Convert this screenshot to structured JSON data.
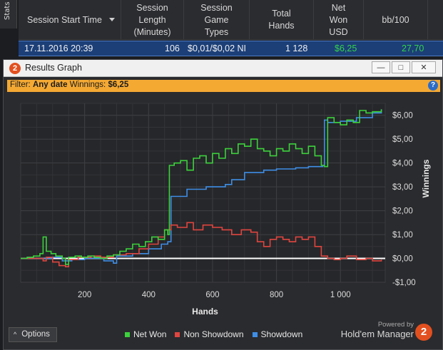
{
  "sidebar": {
    "tab_label": "Stats"
  },
  "table": {
    "columns": [
      {
        "label": "Session Start Time",
        "sortable": true
      },
      {
        "label": "Session\nLength\n(Minutes)"
      },
      {
        "label": "Session\nGame\nTypes"
      },
      {
        "label": "Total\nHands"
      },
      {
        "label": "Net\nWon\nUSD"
      },
      {
        "label": "bb/100"
      }
    ],
    "rows": [
      {
        "start": "17.11.2016 20:39",
        "length": "106",
        "game": "$0,01/$0,02 NI",
        "hands": "1 128",
        "net": "$6,25",
        "bb100": "27,70"
      }
    ]
  },
  "window": {
    "title": "Results Graph",
    "logo_char": "2",
    "minimize_glyph": "—",
    "maximize_glyph": "□",
    "close_glyph": "✕",
    "help_glyph": "?"
  },
  "filter": {
    "prefix": "Filter:",
    "date_value": "Any date",
    "winnings_label": "Winnings:",
    "winnings_value": "$6,25"
  },
  "options_button": {
    "label": "Options",
    "caret": "^"
  },
  "powered": {
    "line1": "Powered by",
    "line2": "Hold'em Manager",
    "logo_char": "2"
  },
  "colors": {
    "net_won": "#3cd23c",
    "non_showdown": "#e0453f",
    "showdown": "#3f8ee6",
    "filter_bar": "#f4a933",
    "selected_row": "#1c3f78"
  },
  "chart_data": {
    "type": "line",
    "xlabel": "Hands",
    "ylabel": "Winnings",
    "xlim": [
      0,
      1140
    ],
    "ylim": [
      -1,
      6.5
    ],
    "x_ticks": [
      200,
      400,
      600,
      800,
      1000
    ],
    "x_tick_labels": [
      "200",
      "400",
      "600",
      "800",
      "1 000"
    ],
    "y_ticks": [
      -1,
      0,
      1,
      2,
      3,
      4,
      5,
      6
    ],
    "y_tick_labels": [
      "-$1,00",
      "$0,00",
      "$1,00",
      "$2,00",
      "$3,00",
      "$4,00",
      "$5,00",
      "$6,00"
    ],
    "grid": true,
    "legend_position": "bottom",
    "series": [
      {
        "name": "Net Won",
        "x": [
          0,
          20,
          40,
          60,
          70,
          80,
          95,
          110,
          130,
          140,
          150,
          170,
          190,
          210,
          230,
          250,
          270,
          290,
          310,
          330,
          350,
          370,
          390,
          410,
          430,
          450,
          460,
          465,
          480,
          500,
          520,
          540,
          560,
          580,
          600,
          620,
          640,
          660,
          680,
          700,
          720,
          740,
          760,
          780,
          800,
          820,
          840,
          860,
          880,
          900,
          920,
          940,
          950,
          960,
          980,
          1000,
          1020,
          1040,
          1060,
          1080,
          1100,
          1128
        ],
        "values": [
          0,
          0.05,
          0.1,
          0.2,
          0.9,
          0.3,
          0.2,
          0.1,
          0.0,
          -0.25,
          0.05,
          0.1,
          0.05,
          0.1,
          0.05,
          0.0,
          0.1,
          0.15,
          0.3,
          0.4,
          0.6,
          0.5,
          0.7,
          0.9,
          0.8,
          1.2,
          1.0,
          3.9,
          4.0,
          4.1,
          3.7,
          4.2,
          4.3,
          4.0,
          4.4,
          4.2,
          4.6,
          4.4,
          4.8,
          4.7,
          5.0,
          4.6,
          4.5,
          4.3,
          4.6,
          4.5,
          4.8,
          4.6,
          4.4,
          4.7,
          4.3,
          3.9,
          3.85,
          5.9,
          5.7,
          5.6,
          5.8,
          5.7,
          6.2,
          6.1,
          6.15,
          6.25
        ]
      },
      {
        "name": "Non Showdown",
        "x": [
          0,
          40,
          70,
          80,
          100,
          120,
          140,
          150,
          180,
          220,
          250,
          290,
          330,
          370,
          400,
          430,
          450,
          470,
          490,
          520,
          540,
          570,
          600,
          630,
          660,
          690,
          720,
          740,
          760,
          780,
          800,
          820,
          840,
          860,
          880,
          900,
          920,
          940,
          960,
          980,
          1000,
          1020,
          1050,
          1080,
          1100,
          1128
        ],
        "values": [
          0,
          0.0,
          -0.1,
          0.05,
          -0.15,
          -0.3,
          -0.35,
          -0.05,
          0.05,
          0.1,
          0.05,
          0.15,
          0.2,
          0.4,
          0.6,
          0.9,
          1.2,
          1.4,
          1.3,
          1.5,
          1.2,
          1.4,
          1.3,
          1.2,
          1.0,
          1.2,
          1.1,
          0.7,
          0.5,
          0.8,
          0.9,
          0.8,
          0.7,
          0.9,
          0.8,
          0.9,
          0.5,
          0.1,
          0.0,
          -0.05,
          0.0,
          0.1,
          -0.05,
          0.0,
          -0.1,
          -0.05
        ]
      },
      {
        "name": "Showdown",
        "x": [
          0,
          60,
          100,
          130,
          160,
          200,
          260,
          290,
          300,
          350,
          400,
          440,
          460,
          470,
          520,
          580,
          640,
          660,
          700,
          760,
          800,
          860,
          900,
          945,
          950,
          960,
          1000,
          1050,
          1100,
          1128
        ],
        "values": [
          0,
          0.0,
          0.05,
          -0.1,
          -0.05,
          0.0,
          -0.1,
          -0.2,
          0.1,
          0.2,
          0.4,
          0.6,
          0.7,
          2.6,
          2.9,
          3.0,
          3.1,
          3.3,
          3.6,
          3.7,
          3.75,
          3.8,
          3.85,
          3.9,
          5.8,
          5.7,
          5.75,
          5.9,
          6.1,
          6.25
        ]
      }
    ]
  }
}
